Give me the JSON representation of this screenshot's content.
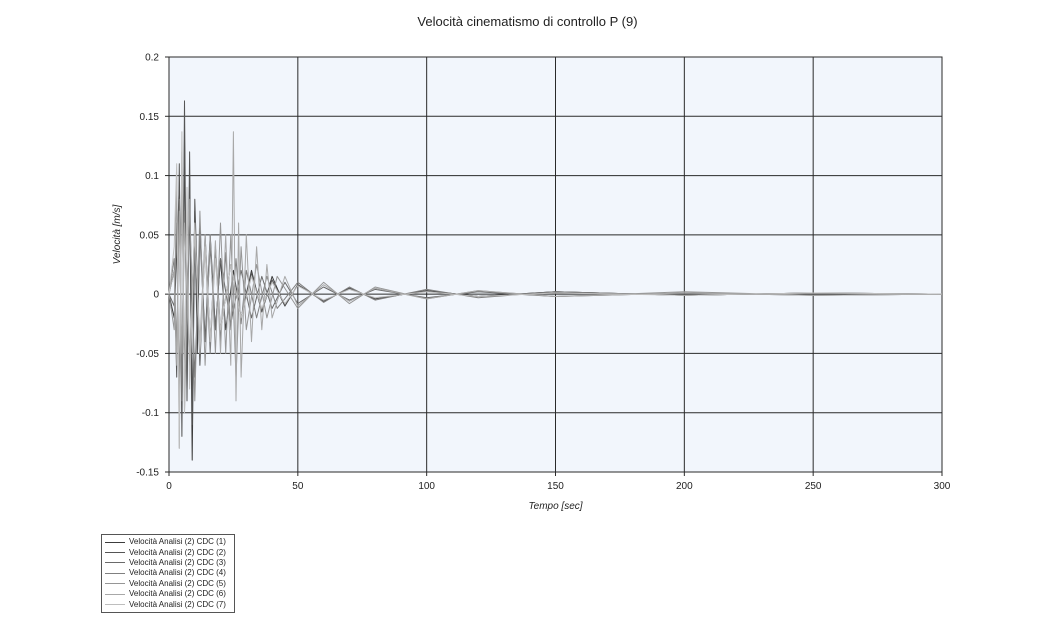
{
  "chart_data": {
    "type": "line",
    "title": "Velocità cinematismo di controllo P (9)",
    "xlabel": "Tempo [sec]",
    "ylabel": "Velocità [m/s]",
    "xlim": [
      0,
      300
    ],
    "ylim": [
      -0.15,
      0.2
    ],
    "x_ticks": [
      0,
      50,
      100,
      150,
      200,
      250,
      300
    ],
    "y_ticks": [
      -0.15,
      -0.1,
      -0.05,
      0,
      0.05,
      0.1,
      0.15,
      0.2
    ],
    "y_tick_labels": [
      "-0.15",
      "-0.1",
      "-0.05",
      "0",
      "0.05",
      "0.1",
      "0.15",
      "0.2"
    ],
    "grid": true,
    "legend_position": "bottom-left",
    "plot_background": "#f2f6fc",
    "series": [
      {
        "name": "Velocità Analisi (2) CDC (1)",
        "color": "#3c3c3c",
        "x": [
          0,
          2,
          4,
          5,
          6,
          7,
          8,
          9,
          10,
          11,
          12,
          14,
          16,
          18,
          20,
          22,
          25,
          28,
          32,
          36,
          40,
          45,
          50,
          60,
          70,
          80,
          100,
          120,
          150,
          200,
          250,
          300
        ],
        "y": [
          0,
          -0.02,
          0.09,
          -0.1,
          0.13,
          -0.08,
          0.1,
          -0.14,
          0.07,
          -0.05,
          0.06,
          -0.04,
          0.05,
          -0.03,
          0.03,
          -0.03,
          0.02,
          -0.02,
          0.02,
          -0.015,
          0.015,
          -0.01,
          0.008,
          -0.006,
          0.005,
          -0.004,
          0.003,
          -0.002,
          0.002,
          -0.001,
          0.001,
          0
        ]
      },
      {
        "name": "Velocità Analisi (2) CDC (2)",
        "color": "#555555",
        "x": [
          0,
          2,
          3,
          4,
          5,
          6,
          7,
          8,
          9,
          10,
          12,
          14,
          16,
          18,
          20,
          24,
          28,
          32,
          36,
          40,
          45,
          50,
          60,
          70,
          80,
          100,
          120,
          150,
          200,
          250,
          300
        ],
        "y": [
          0,
          0.02,
          -0.07,
          0.11,
          -0.12,
          0.163,
          -0.09,
          0.12,
          -0.11,
          0.08,
          -0.06,
          0.05,
          -0.04,
          0.04,
          -0.03,
          0.025,
          -0.02,
          0.018,
          -0.015,
          0.012,
          -0.01,
          0.008,
          -0.006,
          0.005,
          -0.004,
          0.003,
          -0.002,
          0.002,
          -0.001,
          0.001,
          0
        ]
      },
      {
        "name": "Velocità Analisi (2) CDC (3)",
        "color": "#6a6a6a",
        "x": [
          0,
          2,
          3,
          4,
          5,
          6,
          8,
          10,
          12,
          14,
          16,
          18,
          20,
          24,
          28,
          32,
          36,
          40,
          45,
          50,
          60,
          70,
          80,
          100,
          120,
          150,
          200,
          250,
          300
        ],
        "y": [
          0,
          -0.01,
          0.06,
          -0.08,
          0.09,
          -0.06,
          0.07,
          -0.07,
          0.05,
          -0.04,
          0.04,
          -0.03,
          0.03,
          -0.025,
          0.02,
          -0.02,
          0.015,
          -0.012,
          0.01,
          -0.008,
          0.006,
          -0.005,
          0.004,
          -0.003,
          0.002,
          -0.002,
          0.001,
          -0.001,
          0
        ]
      },
      {
        "name": "Velocità Analisi (2) CDC (4)",
        "color": "#808080",
        "x": [
          0,
          2,
          3,
          4,
          5,
          6,
          8,
          10,
          12,
          14,
          16,
          18,
          20,
          22,
          24,
          26,
          28,
          30,
          34,
          38,
          42,
          50,
          60,
          70,
          80,
          100,
          120,
          150,
          200,
          250,
          300
        ],
        "y": [
          0,
          0.03,
          -0.05,
          0.08,
          -0.09,
          0.07,
          -0.06,
          0.06,
          -0.05,
          0.04,
          -0.05,
          0.04,
          -0.04,
          0.035,
          -0.03,
          0.03,
          -0.025,
          0.02,
          -0.02,
          0.015,
          -0.012,
          0.01,
          -0.007,
          0.006,
          -0.005,
          0.004,
          -0.003,
          0.002,
          -0.001,
          0.001,
          0
        ]
      },
      {
        "name": "Velocità Analisi (2) CDC (5)",
        "color": "#969696",
        "x": [
          0,
          2,
          3,
          4,
          5,
          6,
          8,
          10,
          12,
          14,
          16,
          18,
          20,
          22,
          24,
          26,
          28,
          30,
          34,
          38,
          42,
          50,
          60,
          70,
          80,
          100,
          120,
          150,
          200,
          250,
          300
        ],
        "y": [
          0,
          -0.03,
          0.1,
          -0.13,
          0.12,
          -0.1,
          0.08,
          -0.09,
          0.07,
          -0.06,
          0.05,
          -0.05,
          0.06,
          -0.05,
          0.05,
          -0.07,
          0.04,
          -0.03,
          0.025,
          -0.02,
          0.015,
          -0.012,
          0.01,
          -0.008,
          0.006,
          -0.004,
          0.003,
          -0.002,
          0.002,
          -0.001,
          0
        ]
      },
      {
        "name": "Velocità Analisi (2) CDC (6)",
        "color": "#a8a8a8",
        "x": [
          0,
          2,
          3,
          4,
          5,
          6,
          8,
          10,
          12,
          14,
          16,
          18,
          20,
          22,
          24,
          25,
          26,
          27,
          28,
          30,
          32,
          34,
          36,
          38,
          40,
          45,
          50,
          60,
          70,
          80,
          100,
          120,
          150,
          200,
          250,
          300
        ],
        "y": [
          0,
          0.02,
          -0.06,
          0.07,
          -0.05,
          0.06,
          -0.05,
          0.05,
          -0.04,
          0.05,
          -0.04,
          0.045,
          -0.05,
          0.05,
          -0.06,
          0.137,
          -0.09,
          0.06,
          -0.07,
          0.05,
          -0.04,
          0.04,
          -0.03,
          0.025,
          -0.02,
          0.015,
          -0.01,
          0.008,
          -0.006,
          0.005,
          -0.004,
          0.003,
          -0.002,
          0.001,
          -0.001,
          0
        ]
      },
      {
        "name": "Velocità Analisi (2) CDC (7)",
        "color": "#bebebe",
        "x": [
          0,
          2,
          3,
          4,
          5,
          6,
          7,
          8,
          10,
          12,
          14,
          16,
          18,
          20,
          24,
          28,
          32,
          36,
          40,
          45,
          50,
          60,
          70,
          80,
          100,
          120,
          150,
          200,
          250,
          300
        ],
        "y": [
          0,
          0.04,
          0.11,
          -0.13,
          0.137,
          -0.1,
          0.09,
          -0.08,
          0.06,
          -0.05,
          0.04,
          -0.04,
          0.03,
          -0.03,
          0.025,
          -0.02,
          0.015,
          -0.012,
          0.01,
          -0.008,
          0.007,
          -0.005,
          0.004,
          -0.003,
          0.002,
          -0.002,
          0.001,
          -0.001,
          0.001,
          0
        ]
      }
    ]
  }
}
